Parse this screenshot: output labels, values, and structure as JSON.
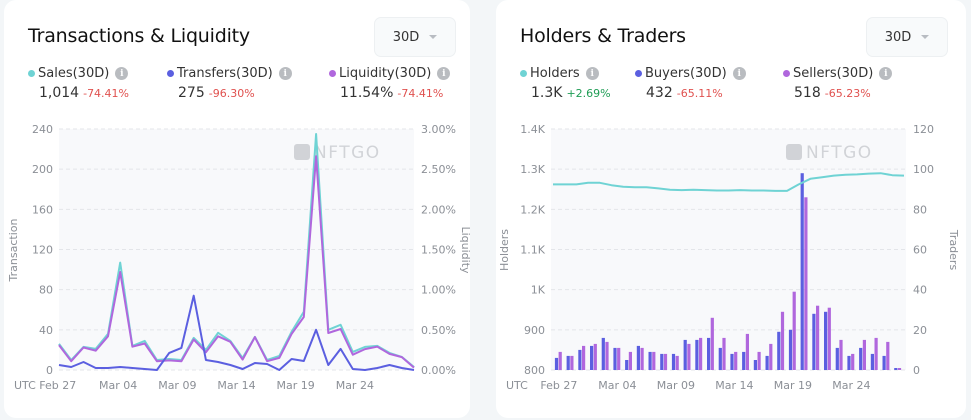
{
  "panels": {
    "left": {
      "title": "Transactions & Liquidity",
      "dropdown": "30D",
      "metrics": [
        {
          "label": "Sales(30D)",
          "value": "1,014",
          "change": "-74.41%",
          "dir": "neg",
          "color": "#6fd3d4"
        },
        {
          "label": "Transfers(30D)",
          "value": "275",
          "change": "-96.30%",
          "dir": "neg",
          "color": "#5b5fe0"
        },
        {
          "label": "Liquidity(30D)",
          "value": "11.54%",
          "change": "-74.41%",
          "dir": "neg",
          "color": "#b067dd"
        }
      ]
    },
    "right": {
      "title": "Holders & Traders",
      "dropdown": "30D",
      "metrics": [
        {
          "label": "Holders",
          "value": "1.3K",
          "change": "+2.69%",
          "dir": "pos",
          "color": "#6fd3d4"
        },
        {
          "label": "Buyers(30D)",
          "value": "432",
          "change": "-65.11%",
          "dir": "neg",
          "color": "#5b5fe0"
        },
        {
          "label": "Sellers(30D)",
          "value": "518",
          "change": "-65.23%",
          "dir": "neg",
          "color": "#b067dd"
        }
      ]
    }
  },
  "watermark": "NFTGO",
  "chart_data": [
    {
      "type": "line",
      "title": "Transactions & Liquidity",
      "xlabel": "",
      "x_prefix": "UTC",
      "ylabel": "Transaction",
      "y2label": "Liquidity",
      "ylim": [
        0,
        240
      ],
      "y2lim": [
        0,
        3.0
      ],
      "yticks": [
        "0",
        "40",
        "80",
        "120",
        "160",
        "200",
        "240"
      ],
      "y2ticks": [
        "0.00%",
        "0.50%",
        "1.00%",
        "1.50%",
        "2.00%",
        "2.50%",
        "3.00%"
      ],
      "xticks": [
        {
          "day": 0,
          "label": "Feb 27"
        },
        {
          "day": 5,
          "label": "Mar 04"
        },
        {
          "day": 10,
          "label": "Mar 09"
        },
        {
          "day": 15,
          "label": "Mar 14"
        },
        {
          "day": 20,
          "label": "Mar 19"
        },
        {
          "day": 25,
          "label": "Mar 24"
        }
      ],
      "grid": true,
      "days": 31,
      "series": [
        {
          "name": "Sales",
          "axis": "left",
          "color": "#6fd3d4",
          "values": [
            26,
            10,
            23,
            21,
            36,
            107,
            24,
            29,
            10,
            11,
            10,
            32,
            20,
            37,
            29,
            12,
            33,
            10,
            14,
            38,
            58,
            235,
            40,
            45,
            18,
            23,
            24,
            17,
            13,
            3
          ]
        },
        {
          "name": "Transfers",
          "axis": "left",
          "color": "#5b5fe0",
          "values": [
            5,
            3,
            8,
            2,
            2,
            3,
            2,
            1,
            0,
            17,
            22,
            74,
            10,
            8,
            5,
            1,
            7,
            6,
            0,
            11,
            9,
            40,
            5,
            21,
            1,
            0,
            2,
            5,
            2,
            0
          ]
        },
        {
          "name": "Liquidity",
          "axis": "right",
          "color": "#b067dd",
          "values": [
            0.31,
            0.11,
            0.28,
            0.24,
            0.42,
            1.22,
            0.29,
            0.33,
            0.11,
            0.12,
            0.11,
            0.38,
            0.22,
            0.42,
            0.35,
            0.13,
            0.41,
            0.11,
            0.15,
            0.45,
            0.66,
            2.66,
            0.46,
            0.51,
            0.19,
            0.26,
            0.29,
            0.2,
            0.16,
            0.03
          ]
        }
      ]
    },
    {
      "type": "bar",
      "title": "Holders & Traders",
      "x_prefix": "UTC",
      "ylabel": "Holders",
      "y2label": "Traders",
      "ylim": [
        800,
        1400
      ],
      "y2lim": [
        0,
        120
      ],
      "yticks": [
        "800",
        "900",
        "1K",
        "1.1K",
        "1.2K",
        "1.3K",
        "1.4K"
      ],
      "y2ticks": [
        "0",
        "20",
        "40",
        "60",
        "80",
        "100",
        "120"
      ],
      "xticks": [
        {
          "day": 0,
          "label": "Feb 27"
        },
        {
          "day": 5,
          "label": "Mar 04"
        },
        {
          "day": 10,
          "label": "Mar 09"
        },
        {
          "day": 15,
          "label": "Mar 14"
        },
        {
          "day": 20,
          "label": "Mar 19"
        },
        {
          "day": 25,
          "label": "Mar 24"
        }
      ],
      "grid": true,
      "days": 31,
      "series": [
        {
          "name": "Holders",
          "kind": "line",
          "axis": "left",
          "color": "#6fd3d4",
          "values": [
            1262,
            1262,
            1262,
            1266,
            1266,
            1260,
            1256,
            1255,
            1255,
            1252,
            1249,
            1248,
            1249,
            1248,
            1247,
            1247,
            1248,
            1247,
            1247,
            1246,
            1246,
            1262,
            1276,
            1280,
            1284,
            1286,
            1287,
            1289,
            1290,
            1285,
            1284
          ]
        },
        {
          "name": "Buyers",
          "kind": "bar",
          "axis": "right",
          "color": "#5b5fe0",
          "values": [
            6,
            7,
            10,
            12,
            16,
            11,
            5,
            12,
            9,
            8,
            8,
            15,
            15,
            16,
            11,
            8,
            9,
            5,
            7,
            19,
            20,
            98,
            28,
            29,
            11,
            7,
            11,
            8,
            7,
            1
          ]
        },
        {
          "name": "Sellers",
          "kind": "bar",
          "axis": "right",
          "color": "#b067dd",
          "values": [
            9,
            7,
            12,
            13,
            14,
            11,
            9,
            11,
            9,
            8,
            7,
            13,
            16,
            26,
            16,
            9,
            18,
            9,
            13,
            29,
            39,
            86,
            32,
            31,
            15,
            8,
            15,
            16,
            14,
            1
          ]
        }
      ]
    }
  ]
}
